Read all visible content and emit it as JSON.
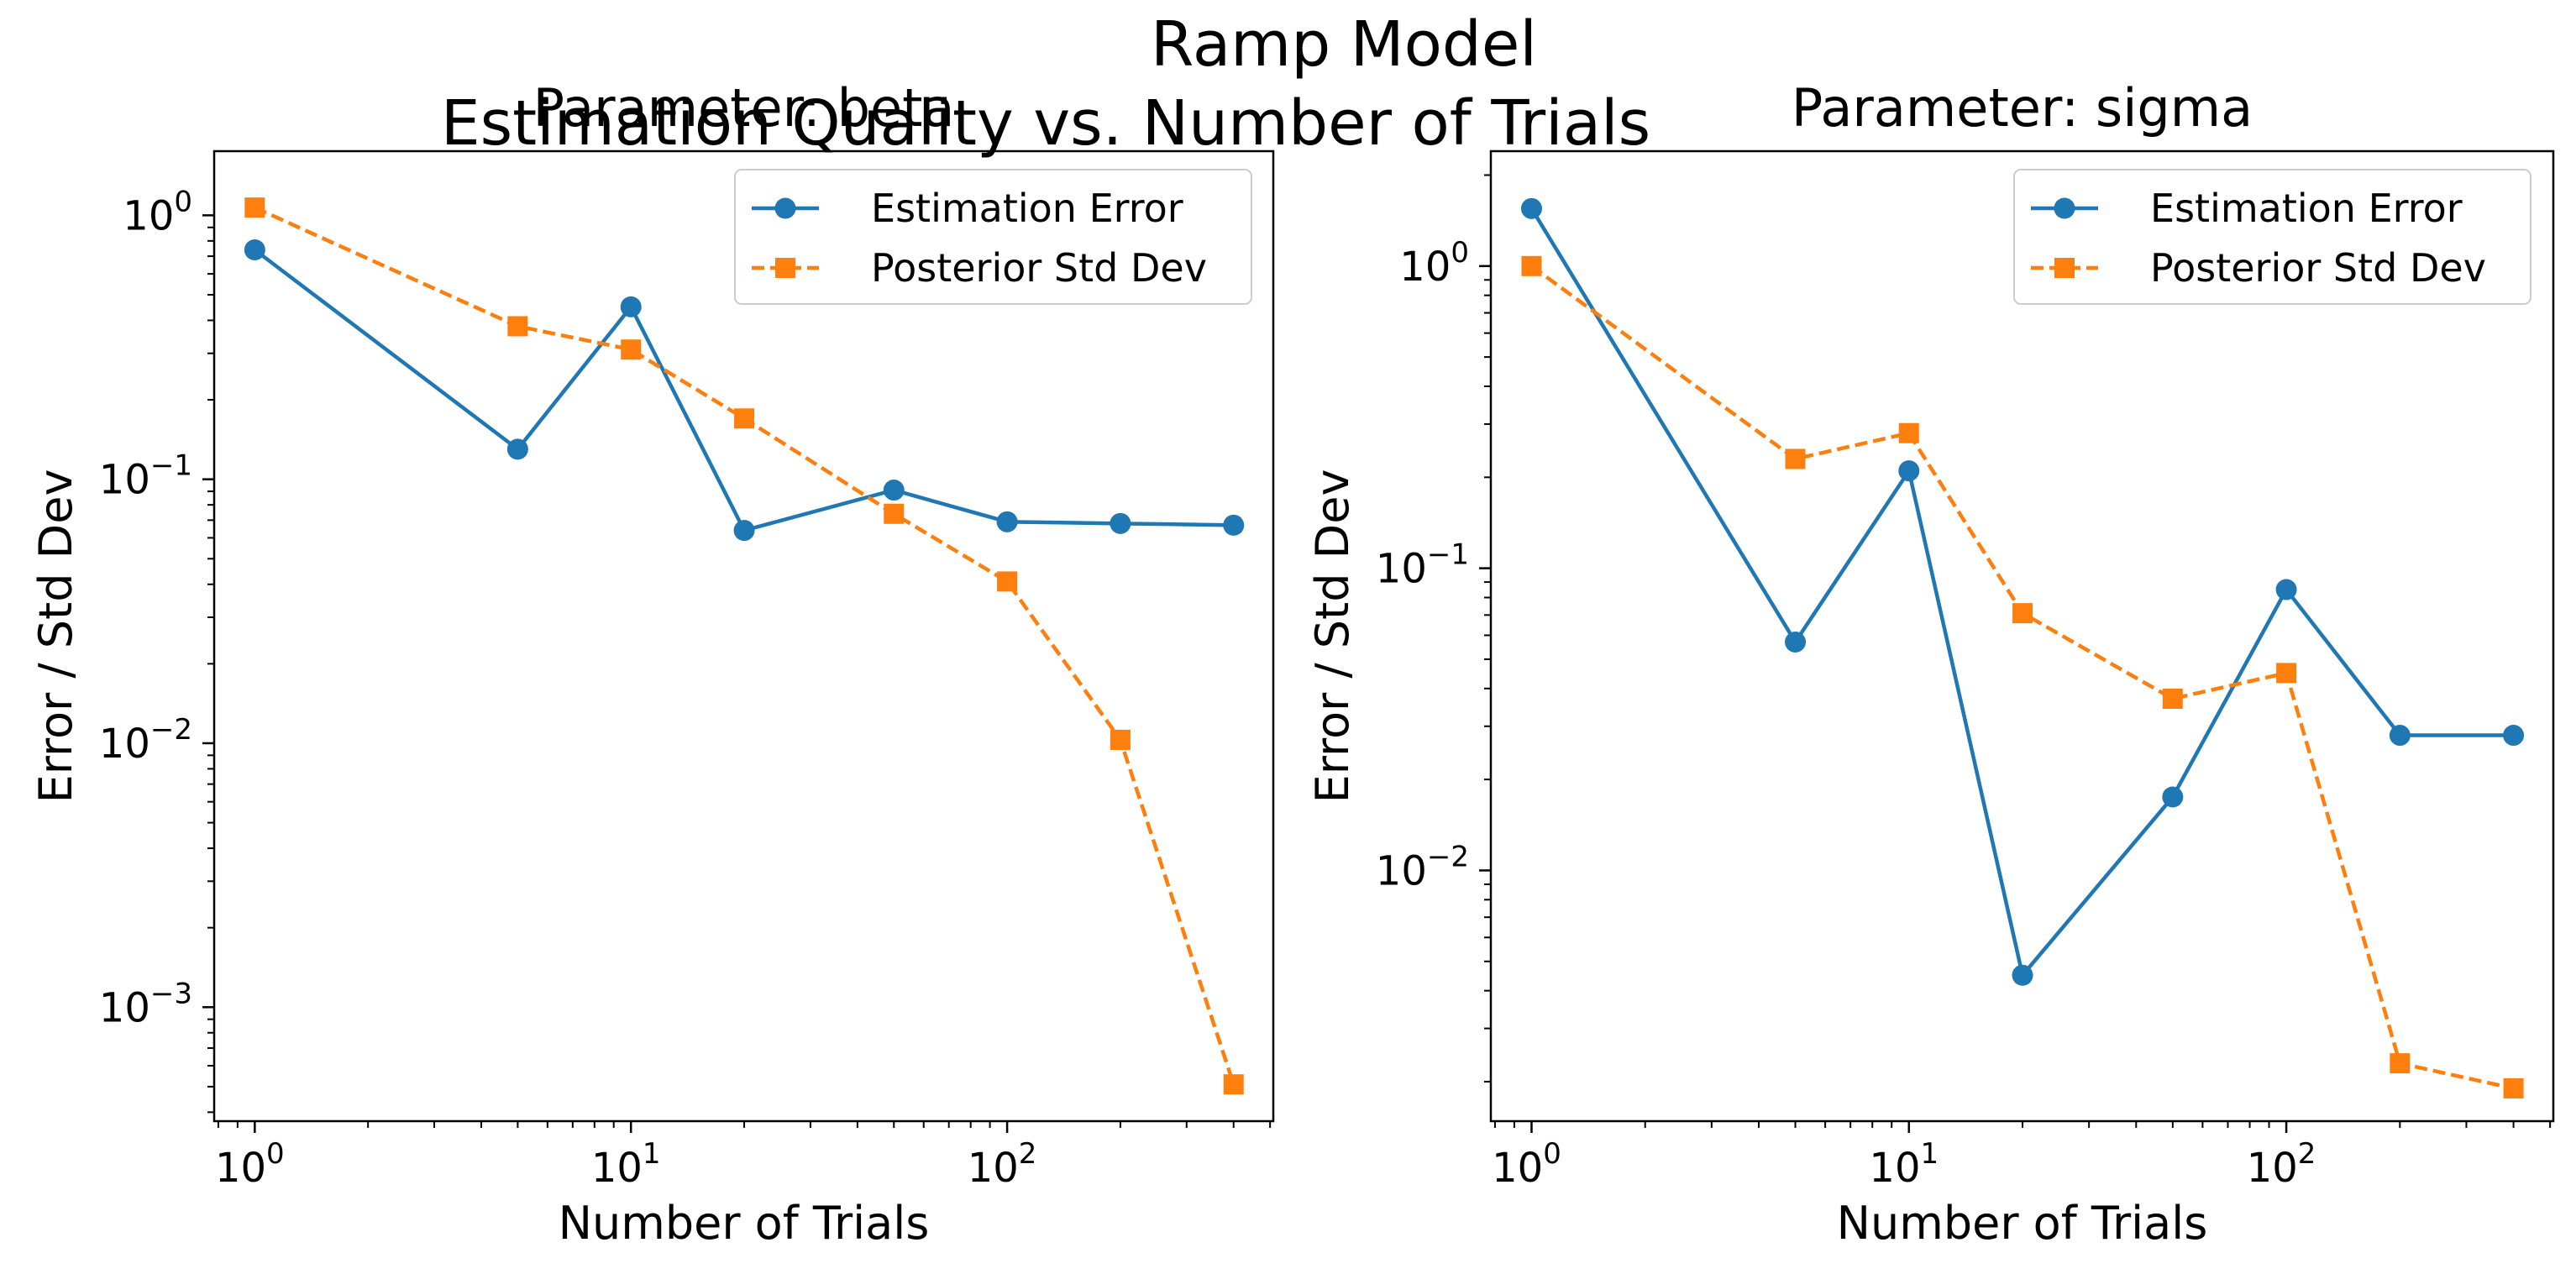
{
  "suptitle": [
    "Ramp Model",
    "Estimation Quality vs. Number of Trials"
  ],
  "colors": {
    "estimation": "#1f77b4",
    "posterior": "#ff7f0e"
  },
  "chart_data": [
    {
      "type": "line",
      "title": "Parameter: beta",
      "xlabel": "Number of Trials",
      "ylabel": "Error / Std Dev",
      "xscale": "log",
      "yscale": "log",
      "xlim": [
        0.78,
        510
      ],
      "ylim": [
        0.00037,
        1.75
      ],
      "xticks": [
        1,
        10,
        100
      ],
      "yticks": [
        0.001,
        0.01,
        0.1,
        1
      ],
      "legend": "upper right",
      "x": [
        1,
        5,
        10,
        20,
        50,
        100,
        200,
        400
      ],
      "series": [
        {
          "name": "Estimation Error",
          "style": "solid",
          "marker": "circle",
          "values": [
            0.74,
            0.13,
            0.45,
            0.064,
            0.091,
            0.069,
            0.068,
            0.067
          ]
        },
        {
          "name": "Posterior Std Dev",
          "style": "dashed",
          "marker": "square",
          "values": [
            1.07,
            0.38,
            0.31,
            0.17,
            0.074,
            0.041,
            0.0103,
            0.00051
          ]
        }
      ]
    },
    {
      "type": "line",
      "title": "Parameter: sigma",
      "xlabel": "Number of Trials",
      "ylabel": "Error / Std Dev",
      "xscale": "log",
      "yscale": "log",
      "xlim": [
        0.78,
        510
      ],
      "ylim": [
        0.00148,
        2.4
      ],
      "xticks": [
        1,
        10,
        100
      ],
      "yticks": [
        0.01,
        0.1,
        1
      ],
      "legend": "upper right",
      "x": [
        1,
        5,
        10,
        20,
        50,
        100,
        200,
        400
      ],
      "series": [
        {
          "name": "Estimation Error",
          "style": "solid",
          "marker": "circle",
          "values": [
            1.55,
            0.057,
            0.21,
            0.0045,
            0.0175,
            0.085,
            0.028,
            0.028
          ]
        },
        {
          "name": "Posterior Std Dev",
          "style": "dashed",
          "marker": "square",
          "values": [
            1.0,
            0.23,
            0.28,
            0.071,
            0.037,
            0.045,
            0.0023,
            0.0019
          ]
        }
      ]
    }
  ]
}
